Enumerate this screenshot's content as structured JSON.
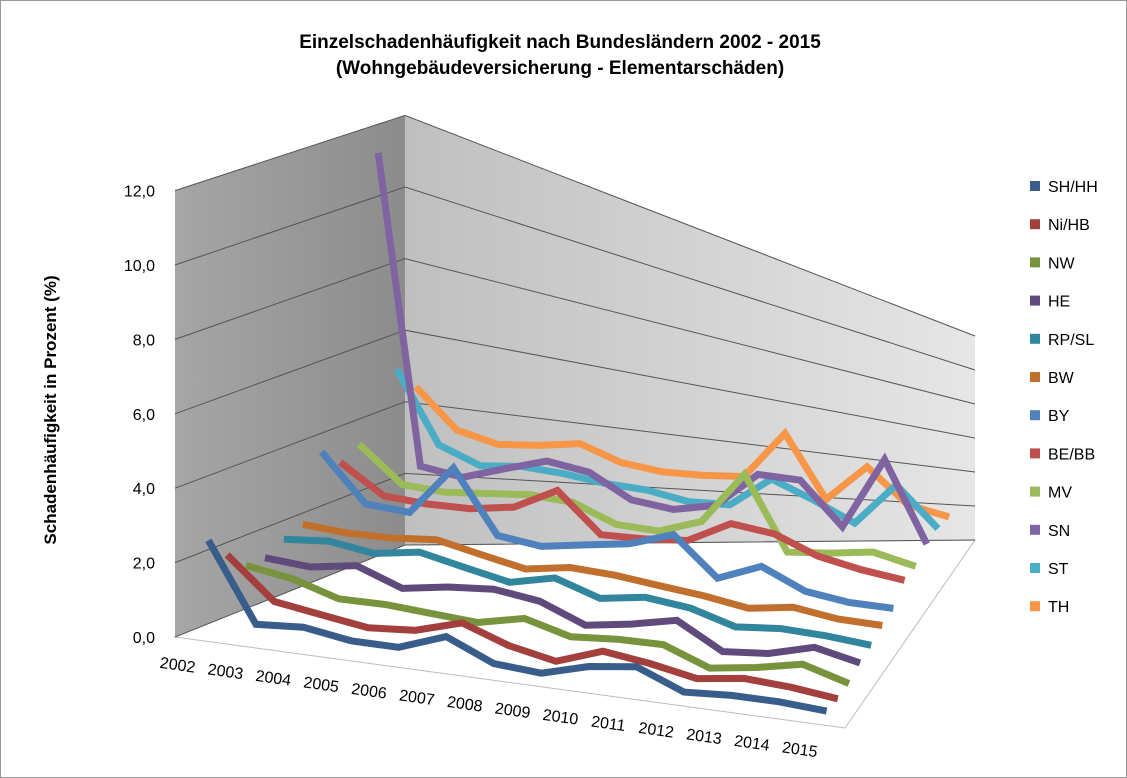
{
  "chart_data": {
    "type": "line3d",
    "title": "Einzelschadenhäufigkeit nach Bundesländern 2002 -  2015",
    "subtitle": "(Wohngebäudeversicherung - Elementarschäden)",
    "y_label": "Schadenhäufigkeit in Prozent (%)",
    "categories": [
      "2002",
      "2003",
      "2004",
      "2005",
      "2006",
      "2007",
      "2008",
      "2009",
      "2010",
      "2011",
      "2012",
      "2013",
      "2014",
      "2015"
    ],
    "ylim": [
      0,
      12
    ],
    "yticks": [
      {
        "value": 0,
        "label": "0,0"
      },
      {
        "value": 2,
        "label": "2,0"
      },
      {
        "value": 4,
        "label": "4,0"
      },
      {
        "value": 6,
        "label": "6,0"
      },
      {
        "value": 8,
        "label": "8,0"
      },
      {
        "value": 10,
        "label": "10,0"
      },
      {
        "value": 12,
        "label": "12,0"
      }
    ],
    "grid": true,
    "legend": "right",
    "series": [
      {
        "name": "SH/HH",
        "color": "#385d8a",
        "values": [
          2.6,
          0.5,
          0.6,
          0.4,
          0.4,
          0.9,
          0.3,
          0.2,
          0.6,
          0.8,
          0.2,
          0.3,
          0.3,
          0.2
        ]
      },
      {
        "name": "Ni/HB",
        "color": "#a33f3c",
        "values": [
          2.0,
          0.9,
          0.7,
          0.5,
          0.6,
          1.0,
          0.5,
          0.2,
          0.7,
          0.5,
          0.2,
          0.4,
          0.3,
          0.1
        ]
      },
      {
        "name": "NW",
        "color": "#77933c",
        "values": [
          1.5,
          1.3,
          0.9,
          0.9,
          0.8,
          0.7,
          1.0,
          0.6,
          0.7,
          0.7,
          0.1,
          0.3,
          0.6,
          0.1
        ]
      },
      {
        "name": "HE",
        "color": "#5f4a7b",
        "values": [
          1.5,
          1.4,
          1.6,
          1.1,
          1.3,
          1.4,
          1.2,
          0.6,
          0.8,
          1.1,
          0.2,
          0.3,
          0.7,
          0.3
        ]
      },
      {
        "name": "RP/SL",
        "color": "#31859c",
        "values": [
          1.8,
          1.9,
          1.7,
          1.9,
          1.6,
          1.3,
          1.6,
          1.1,
          1.3,
          1.1,
          0.6,
          0.7,
          0.6,
          0.4
        ]
      },
      {
        "name": "BW",
        "color": "#c0702c",
        "values": [
          2.0,
          1.9,
          1.9,
          2.0,
          1.7,
          1.4,
          1.6,
          1.5,
          1.3,
          1.1,
          0.8,
          1.0,
          0.7,
          0.6
        ]
      },
      {
        "name": "BY",
        "color": "#4f81bd",
        "values": [
          3.8,
          2.5,
          2.4,
          3.9,
          2.0,
          1.8,
          2.0,
          2.2,
          2.7,
          1.3,
          1.9,
          1.1,
          0.8,
          0.7
        ]
      },
      {
        "name": "BE/BB",
        "color": "#c0504d",
        "values": [
          3.3,
          2.5,
          2.4,
          2.4,
          2.6,
          3.3,
          2.0,
          2.0,
          2.1,
          2.9,
          2.7,
          2.0,
          1.6,
          1.3
        ]
      },
      {
        "name": "MV",
        "color": "#9bbb59",
        "values": [
          3.6,
          2.6,
          2.5,
          2.6,
          2.7,
          2.6,
          2.0,
          1.9,
          2.4,
          4.4,
          1.5,
          1.6,
          1.8,
          1.3
        ]
      },
      {
        "name": "SN",
        "color": "#8064a2",
        "values": [
          11.6,
          2.9,
          2.7,
          3.1,
          3.5,
          3.3,
          2.5,
          2.3,
          2.6,
          4.0,
          4.0,
          2.2,
          5.5,
          1.7
        ]
      },
      {
        "name": "ST",
        "color": "#4bacc6",
        "values": [
          5.3,
          3.3,
          2.8,
          2.9,
          2.8,
          2.6,
          2.5,
          2.2,
          2.2,
          3.4,
          2.7,
          1.8,
          3.8,
          1.8
        ]
      },
      {
        "name": "TH",
        "color": "#f79646",
        "values": [
          4.6,
          3.5,
          3.2,
          3.3,
          3.5,
          3.0,
          2.8,
          2.8,
          2.9,
          4.9,
          2.2,
          3.9,
          2.2,
          1.7
        ]
      }
    ]
  }
}
